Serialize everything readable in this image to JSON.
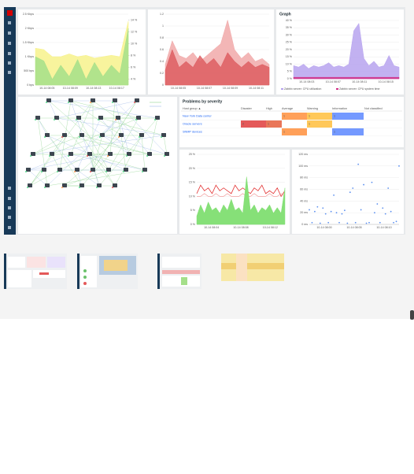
{
  "widgets": {
    "graphs": [
      {
        "type": "area",
        "ylim": [
          0,
          2500
        ],
        "yticks": [
          {
            "value": 0,
            "label": "0 bps"
          },
          {
            "value": 500,
            "label": "500 bps"
          },
          {
            "value": 1000,
            "label": "1 Kbps"
          },
          {
            "value": 1500,
            "label": "1.5 Kbps"
          },
          {
            "value": 2000,
            "label": "2 Kbps"
          },
          {
            "value": 2500,
            "label": "2.5 Kbps"
          }
        ],
        "y2lim": [
          3,
          15
        ],
        "y2ticks": [
          {
            "value": 4,
            "label": "4 %"
          },
          {
            "value": 6,
            "label": "6 %"
          },
          {
            "value": 8,
            "label": "8 %"
          },
          {
            "value": 10,
            "label": "10 %"
          },
          {
            "value": 12,
            "label": "12 %"
          },
          {
            "value": 14,
            "label": "14 %"
          }
        ],
        "xticks": [
          "10-14 08:05",
          "10-14 08:09",
          "10-14 08:13",
          "10-14 08:17"
        ],
        "series": [
          {
            "color": "#f7f28c",
            "values": [
              1300,
              1250,
              1000,
              1000,
              1100,
              1000,
              1050,
              950,
              1000,
              1050,
              1000,
              2250
            ]
          },
          {
            "color": "#a5df8a",
            "values": [
              1000,
              850,
              200,
              700,
              300,
              900,
              200,
              800,
              300,
              700,
              400,
              2000
            ]
          }
        ]
      },
      {
        "type": "area",
        "ylim": [
          0,
          1.2
        ],
        "yticks": [
          0,
          0.2,
          0.4,
          0.6,
          0.8,
          1,
          1.2
        ],
        "xticks": [
          "10-14 08:05",
          "10-14 08:07",
          "10-14 08:09",
          "10-14 08:11"
        ],
        "series": [
          {
            "color": "#f1a9a9",
            "values": [
              0.35,
              0.75,
              0.5,
              0.45,
              0.55,
              0.4,
              0.5,
              0.6,
              0.7,
              1.1,
              0.6,
              0.45,
              0.55,
              0.4,
              0.45,
              0.35
            ]
          },
          {
            "color": "#dd5e62",
            "values": [
              0.25,
              0.6,
              0.3,
              0.4,
              0.3,
              0.5,
              0.35,
              0.45,
              0.3,
              0.55,
              0.4,
              0.3,
              0.4,
              0.3,
              0.35,
              0.3
            ]
          }
        ]
      },
      {
        "type": "area",
        "title": "Graph",
        "ylim": [
          0,
          40
        ],
        "yticks": [
          {
            "value": 0,
            "label": "0 %"
          },
          {
            "value": 5,
            "label": "5 %"
          },
          {
            "value": 10,
            "label": "10 %"
          },
          {
            "value": 15,
            "label": "15 %"
          },
          {
            "value": 20,
            "label": "20 %"
          },
          {
            "value": 25,
            "label": "25 %"
          },
          {
            "value": 30,
            "label": "30 %"
          },
          {
            "value": 35,
            "label": "35 %"
          },
          {
            "value": 40,
            "label": "40 %"
          }
        ],
        "xticks": [
          "10-14 08:03",
          "10-14 08:07",
          "10-14 08:11",
          "10-14 08:15"
        ],
        "series": [
          {
            "name": "Zabbix server: CPU utilization",
            "color": "#b7a3ef",
            "values": [
              9,
              8,
              10,
              7,
              9,
              8,
              9,
              11,
              8,
              9,
              8,
              10,
              33,
              38,
              14,
              9,
              12,
              8,
              9,
              16,
              9,
              8
            ]
          },
          {
            "name": "Zabbix server: CPU system time",
            "color": "#d12f86",
            "values": [
              1,
              1,
              1,
              1,
              1,
              1,
              1,
              1,
              1,
              1,
              1,
              1,
              1,
              1,
              1,
              1,
              1,
              1,
              1,
              1,
              1,
              1
            ]
          }
        ]
      },
      {
        "type": "line",
        "ylim": [
          0,
          25
        ],
        "yticks": [
          {
            "value": 0,
            "label": "0 %"
          },
          {
            "value": 5,
            "label": "5 %"
          },
          {
            "value": 10,
            "label": "10 %"
          },
          {
            "value": 15,
            "label": "15 %"
          },
          {
            "value": 20,
            "label": "20 %"
          },
          {
            "value": 25,
            "label": "25 %"
          }
        ],
        "xticks": [
          "10-14 08:04",
          "10-14 08:08",
          "10-14 08:12"
        ],
        "series": [
          {
            "color": "#e33434",
            "values": [
              11,
              14,
              12,
              13,
              11,
              14,
              12,
              13,
              12,
              11,
              14,
              12,
              13,
              12,
              11,
              13,
              12,
              14,
              11,
              12,
              11,
              13,
              10,
              12
            ]
          },
          {
            "color": "#f2a0a0",
            "values": [
              10,
              10,
              11,
              10,
              10,
              11,
              10,
              10,
              11,
              10,
              10,
              10,
              11,
              10,
              10,
              11,
              10,
              10,
              10,
              11,
              10,
              10,
              11,
              10
            ]
          },
          {
            "color": "#86e078",
            "values": [
              3,
              7,
              4,
              8,
              5,
              6,
              4,
              7,
              5,
              9,
              5,
              6,
              4,
              17,
              5,
              7,
              4,
              6,
              5,
              7,
              4,
              6,
              4,
              13
            ]
          }
        ]
      },
      {
        "type": "scatter",
        "ylim": [
          0,
          120
        ],
        "yticks": [
          {
            "value": 0,
            "label": "0 ms"
          },
          {
            "value": 20,
            "label": "20 ms"
          },
          {
            "value": 40,
            "label": "40 ms"
          },
          {
            "value": 60,
            "label": "60 ms"
          },
          {
            "value": 80,
            "label": "80 ms"
          },
          {
            "value": 100,
            "label": "100 ms"
          },
          {
            "value": 120,
            "label": "120 ms"
          }
        ],
        "xticks": [
          "10-14 08:00",
          "10-14 08:05",
          "10-14 08:10"
        ],
        "series": [
          {
            "color": "#5b8ff0",
            "values": [
              25,
              3,
              22,
              30,
              2,
              28,
              18,
              3,
              22,
              50,
              20,
              3,
              18,
              24,
              2,
              55,
              62,
              3,
              103,
              25,
              68,
              2,
              3,
              72,
              20,
              35,
              3,
              28,
              18,
              62,
              22,
              3,
              5,
              100
            ]
          }
        ]
      }
    ],
    "problems": {
      "title": "Problems by severity",
      "headers": [
        "Host group ▲",
        "Disaster",
        "High",
        "Average",
        "Warning",
        "Information",
        "Not classified"
      ],
      "severity_colors": [
        null,
        "#e45959",
        "#e97659",
        "#ffa059",
        "#ffc859",
        "#7499ff",
        null
      ],
      "rows": [
        [
          "New York Data center",
          null,
          null,
          "1",
          "1",
          "1",
          null
        ],
        [
          "Oracle servers",
          "2",
          "1",
          null,
          "1",
          null,
          null
        ],
        [
          "SNMP devices",
          null,
          null,
          "1",
          null,
          "1",
          null
        ]
      ]
    }
  }
}
